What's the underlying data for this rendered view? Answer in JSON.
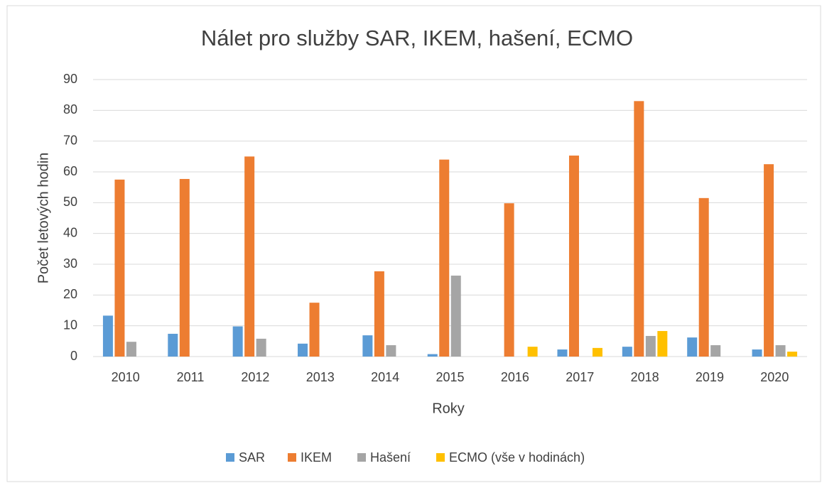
{
  "chart_data": {
    "type": "bar",
    "title": "Nálet pro služby SAR, IKEM, hašení, ECMO",
    "x_label": "Roky",
    "y_label": "Počet letových hodin",
    "categories": [
      "2010",
      "2011",
      "2012",
      "2013",
      "2014",
      "2015",
      "2016",
      "2017",
      "2018",
      "2019",
      "2020"
    ],
    "series": [
      {
        "name": "SAR",
        "color": "#5b9bd5",
        "values": [
          13.3,
          7.4,
          9.8,
          4.2,
          6.9,
          0.8,
          0,
          2.3,
          3.2,
          6.2,
          2.3
        ]
      },
      {
        "name": "IKEM",
        "color": "#ed7d31",
        "values": [
          57.5,
          57.7,
          65,
          17.5,
          27.7,
          64,
          49.8,
          65.3,
          83,
          51.5,
          62.5
        ]
      },
      {
        "name": "Hašení",
        "color": "#a5a5a5",
        "values": [
          4.8,
          0,
          5.8,
          0,
          3.7,
          26.3,
          0,
          0,
          6.7,
          3.7,
          3.7
        ]
      },
      {
        "name": "ECMO (vše v hodinách)",
        "color": "#ffc000",
        "values": [
          0,
          0,
          0,
          0,
          0,
          0,
          3.2,
          2.8,
          8.3,
          0,
          1.6
        ]
      }
    ],
    "ylim": [
      0,
      90
    ],
    "yticks": [
      0,
      10,
      20,
      30,
      40,
      50,
      60,
      70,
      80,
      90
    ],
    "grid": true,
    "legend": "bottom"
  }
}
